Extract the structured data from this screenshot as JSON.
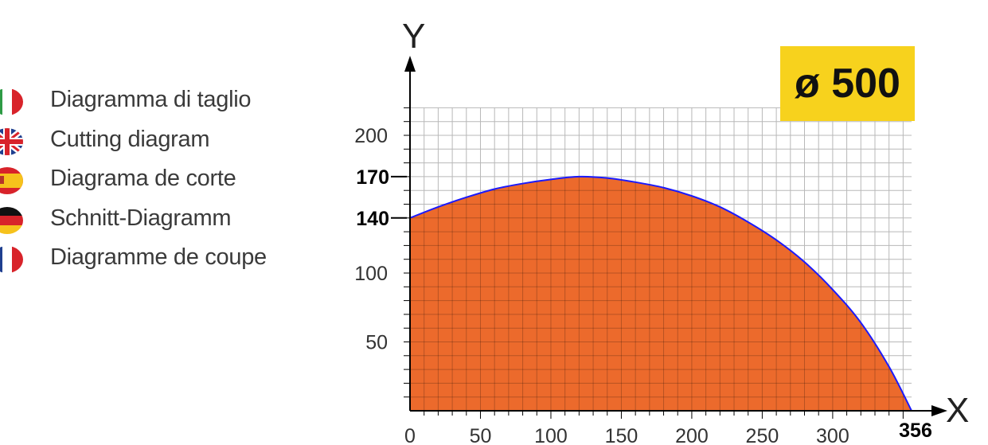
{
  "legend": [
    {
      "flag": "italy-flag-icon",
      "label": "Diagramma di taglio"
    },
    {
      "flag": "uk-flag-icon",
      "label": "Cutting diagram"
    },
    {
      "flag": "spain-flag-icon",
      "label": "Diagrama de corte"
    },
    {
      "flag": "germany-flag-icon",
      "label": "Schnitt-Diagramm"
    },
    {
      "flag": "france-flag-icon",
      "label": "Diagramme de coupe"
    }
  ],
  "badge": {
    "text": "ø 500",
    "color": "#f7d21d"
  },
  "chart_data": {
    "type": "area",
    "xlabel": "X",
    "ylabel": "Y",
    "xlim": [
      0,
      356
    ],
    "ylim": [
      0,
      220
    ],
    "x_ticks": [
      "0",
      "50",
      "100",
      "150",
      "200",
      "250",
      "300",
      "356"
    ],
    "y_ticks": [
      "50",
      "100",
      "140",
      "170",
      "200"
    ],
    "highlight_y_ticks": [
      "140",
      "170"
    ],
    "grid": true,
    "fill_color": "#ec6a2c",
    "line_color": "#1a1aff",
    "x": [
      0,
      20,
      40,
      60,
      80,
      100,
      120,
      140,
      160,
      180,
      200,
      220,
      240,
      260,
      280,
      300,
      320,
      340,
      356
    ],
    "y": [
      140,
      148,
      155,
      161,
      165,
      168,
      170,
      169,
      166,
      162,
      156,
      148,
      137,
      124,
      108,
      88,
      64,
      32,
      0
    ]
  }
}
